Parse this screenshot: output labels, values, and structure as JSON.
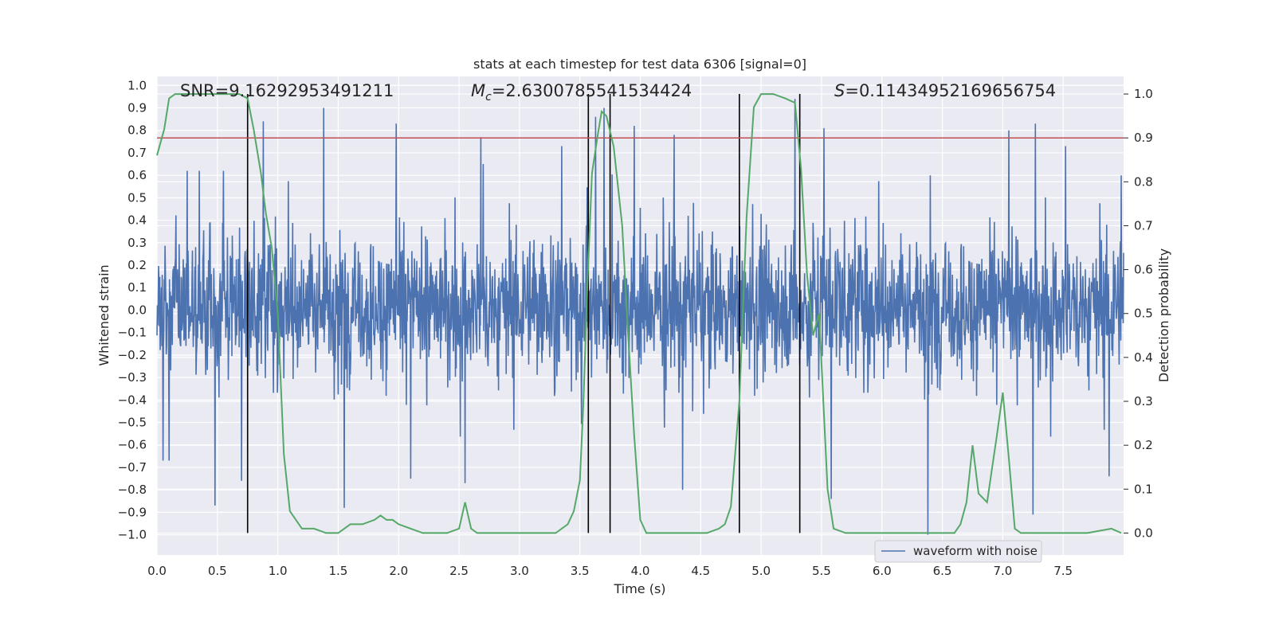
{
  "chart_data": {
    "type": "line",
    "title": "stats at each timestep for test data 6306 [signal=0]",
    "xlabel": "Time (s)",
    "ylabel_left": "Whitened strain",
    "ylabel_right": "Detection probability",
    "xlim": [
      0.0,
      8.0
    ],
    "ylim_left": [
      -1.09,
      1.04
    ],
    "ylim_right": [
      -0.05,
      1.04
    ],
    "grid": true,
    "legend_placement": "bottom-right",
    "x_ticks": [
      "0.0",
      "0.5",
      "1.0",
      "1.5",
      "2.0",
      "2.5",
      "3.0",
      "3.5",
      "4.0",
      "4.5",
      "5.0",
      "5.5",
      "6.0",
      "6.5",
      "7.0",
      "7.5"
    ],
    "y_left_ticks": [
      "1.0",
      "0.9",
      "0.8",
      "0.7",
      "0.6",
      "0.5",
      "0.4",
      "0.3",
      "0.2",
      "0.1",
      "0.0",
      "−0.1",
      "−0.2",
      "−0.3",
      "−0.4",
      "−0.5",
      "−0.6",
      "−0.7",
      "−0.8",
      "−0.9",
      "−1.0"
    ],
    "y_right_ticks": [
      "1.0",
      "0.9",
      "0.8",
      "0.7",
      "0.6",
      "0.5",
      "0.4",
      "0.3",
      "0.2",
      "0.1",
      "0.0"
    ],
    "annotations": {
      "snr": "SNR=9.16292953491211",
      "mc_prefix": "M",
      "mc_sub": "c",
      "mc_value": "=2.6300785541534424",
      "s_prefix": "S",
      "s_value": "=0.11434952169656754"
    },
    "threshold": {
      "value": 0.9,
      "axis": "right",
      "color": "#c44e52"
    },
    "vertical_lines": [
      0.75,
      3.57,
      3.75,
      4.82,
      5.32
    ],
    "series": [
      {
        "name": "waveform with noise",
        "axis": "left",
        "color": "#4c72b0",
        "description_points": {
          "peaks": [
            [
              0.05,
              0.5
            ],
            [
              0.25,
              0.62
            ],
            [
              0.35,
              0.62
            ],
            [
              0.55,
              0.62
            ],
            [
              0.88,
              0.84
            ],
            [
              1.38,
              0.9
            ],
            [
              1.98,
              0.83
            ],
            [
              2.68,
              0.77
            ],
            [
              2.7,
              0.65
            ],
            [
              3.35,
              0.73
            ],
            [
              3.63,
              0.86
            ],
            [
              3.7,
              0.9
            ],
            [
              3.95,
              0.82
            ],
            [
              4.28,
              0.78
            ],
            [
              5.28,
              0.94
            ],
            [
              5.52,
              0.81
            ],
            [
              6.4,
              0.6
            ],
            [
              7.05,
              0.8
            ],
            [
              7.27,
              0.83
            ],
            [
              7.52,
              0.73
            ],
            [
              7.88,
              0.72
            ],
            [
              7.98,
              0.6
            ]
          ],
          "troughs": [
            [
              0.05,
              -0.67
            ],
            [
              0.1,
              -0.67
            ],
            [
              0.48,
              -0.87
            ],
            [
              0.7,
              -0.76
            ],
            [
              1.55,
              -0.88
            ],
            [
              2.1,
              -0.75
            ],
            [
              2.55,
              -0.77
            ],
            [
              4.35,
              -0.8
            ],
            [
              5.58,
              -0.84
            ],
            [
              6.38,
              -1.0
            ],
            [
              7.25,
              -0.91
            ],
            [
              7.88,
              -0.74
            ]
          ]
        }
      },
      {
        "axis": "right",
        "color": "#55a868",
        "x": [
          0.0,
          0.06,
          0.1,
          0.15,
          0.3,
          0.6,
          0.68,
          0.75,
          0.8,
          0.86,
          0.9,
          0.95,
          1.0,
          1.05,
          1.1,
          1.2,
          1.3,
          1.4,
          1.5,
          1.55,
          1.6,
          1.7,
          1.8,
          1.85,
          1.9,
          1.95,
          2.0,
          2.1,
          2.2,
          2.3,
          2.4,
          2.5,
          2.55,
          2.6,
          2.65,
          2.7,
          2.8,
          2.9,
          3.0,
          3.1,
          3.2,
          3.3,
          3.4,
          3.45,
          3.5,
          3.53,
          3.56,
          3.6,
          3.65,
          3.68,
          3.72,
          3.78,
          3.85,
          3.9,
          3.95,
          4.0,
          4.05,
          4.2,
          4.4,
          4.55,
          4.65,
          4.7,
          4.75,
          4.82,
          4.88,
          4.94,
          5.0,
          5.1,
          5.2,
          5.28,
          5.33,
          5.38,
          5.43,
          5.48,
          5.55,
          5.6,
          5.7,
          5.8,
          5.9,
          6.1,
          6.3,
          6.5,
          6.6,
          6.65,
          6.7,
          6.75,
          6.8,
          6.87,
          6.95,
          7.0,
          7.05,
          7.1,
          7.15,
          7.2,
          7.3,
          7.5,
          7.7,
          7.9,
          7.98
        ],
        "y": [
          0.86,
          0.92,
          0.99,
          1.0,
          1.0,
          1.0,
          1.0,
          0.99,
          0.92,
          0.82,
          0.73,
          0.65,
          0.5,
          0.18,
          0.05,
          0.01,
          0.01,
          0.0,
          0.0,
          0.01,
          0.02,
          0.02,
          0.03,
          0.04,
          0.03,
          0.03,
          0.02,
          0.01,
          0.0,
          0.0,
          0.0,
          0.01,
          0.07,
          0.01,
          0.0,
          0.0,
          0.0,
          0.0,
          0.0,
          0.0,
          0.0,
          0.0,
          0.02,
          0.05,
          0.12,
          0.3,
          0.55,
          0.82,
          0.91,
          0.96,
          0.95,
          0.88,
          0.7,
          0.45,
          0.22,
          0.03,
          0.0,
          0.0,
          0.0,
          0.0,
          0.01,
          0.02,
          0.06,
          0.3,
          0.72,
          0.97,
          1.0,
          1.0,
          0.99,
          0.98,
          0.83,
          0.59,
          0.45,
          0.5,
          0.1,
          0.01,
          0.0,
          0.0,
          0.0,
          0.0,
          0.0,
          0.0,
          0.0,
          0.02,
          0.07,
          0.2,
          0.09,
          0.07,
          0.22,
          0.32,
          0.17,
          0.01,
          0.0,
          0.0,
          0.0,
          0.0,
          0.0,
          0.01,
          0.0
        ]
      }
    ]
  }
}
